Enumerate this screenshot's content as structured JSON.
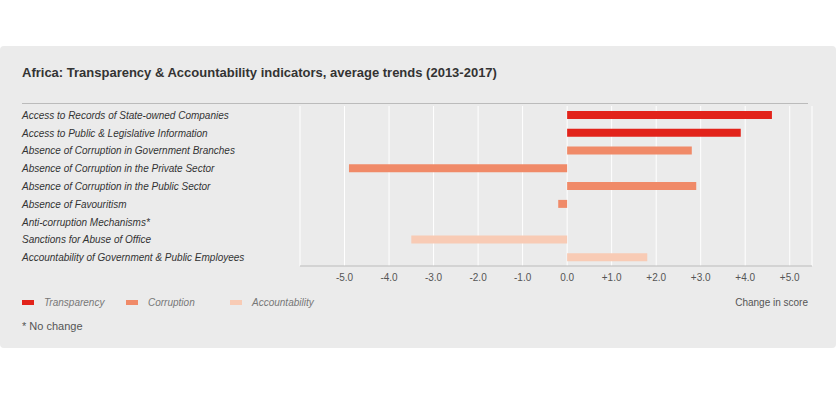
{
  "chart_data": {
    "type": "bar",
    "orientation": "horizontal",
    "title": "Africa: Transparency & Accountability indicators, average trends (2013-2017)",
    "xlabel": "Change in score",
    "annotations": [
      "* No change"
    ],
    "categories": [
      "Access to Records of State-owned Companies",
      "Access to Public & Legislative Information",
      "Absence of Corruption in Government Branches",
      "Absence of Corruption in the Private Sector",
      "Absence of Corruption in the Public Sector",
      "Absence of Favouritism",
      "Anti-corruption Mechanisms*",
      "Sanctions for Abuse of Office",
      "Accountability of Government & Public Employees"
    ],
    "series": [
      {
        "name": "Transparency",
        "color": "#e2231a",
        "values": [
          4.6,
          3.9,
          null,
          null,
          null,
          null,
          null,
          null,
          null
        ]
      },
      {
        "name": "Corruption",
        "color": "#f08a68",
        "values": [
          null,
          null,
          2.8,
          -4.9,
          2.9,
          -0.2,
          0,
          null,
          null
        ]
      },
      {
        "name": "Accountability",
        "color": "#f8cbb5",
        "values": [
          null,
          null,
          null,
          null,
          null,
          null,
          null,
          -3.5,
          1.8
        ]
      }
    ],
    "xlim": [
      -6,
      5.5
    ],
    "xticks": [
      {
        "value": -5,
        "label": "-5.0"
      },
      {
        "value": -4,
        "label": "-4.0"
      },
      {
        "value": -3,
        "label": "-3.0"
      },
      {
        "value": -2,
        "label": "-2.0"
      },
      {
        "value": -1,
        "label": "-1.0"
      },
      {
        "value": 0,
        "label": "0.0"
      },
      {
        "value": 1,
        "label": "+1.0"
      },
      {
        "value": 2,
        "label": "+2.0"
      },
      {
        "value": 3,
        "label": "+3.0"
      },
      {
        "value": 4,
        "label": "+4.0"
      },
      {
        "value": 5,
        "label": "+5.0"
      }
    ],
    "grid": true,
    "legend": "bottom left"
  }
}
